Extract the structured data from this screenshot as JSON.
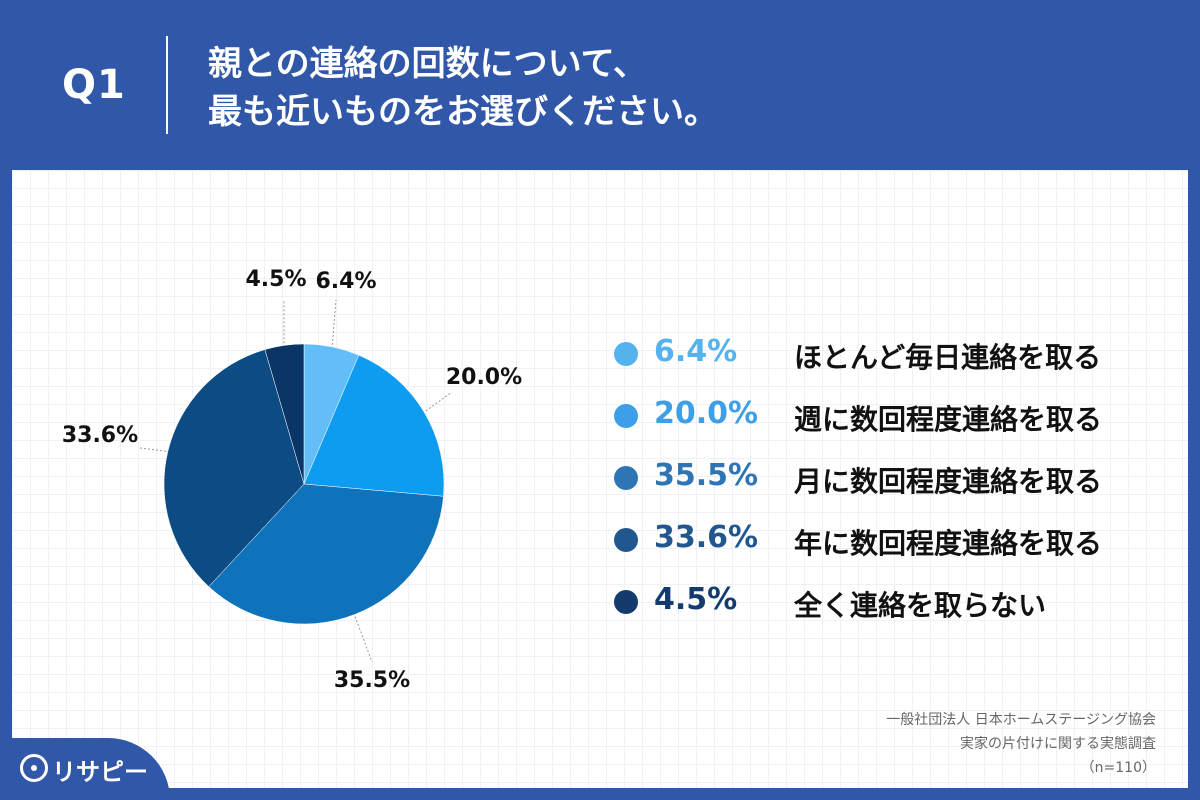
{
  "header": {
    "q_number": "Q1",
    "title_line1": "親との連絡の回数について、",
    "title_line2": "最も近いものをお選びください。"
  },
  "chart_data": {
    "type": "pie",
    "slices": [
      {
        "label": "ほとんど毎日連絡を取る",
        "value": 6.4,
        "value_text": "6.4%",
        "color": "#62bdf8"
      },
      {
        "label": "週に数回程度連絡を取る",
        "value": 20.0,
        "value_text": "20.0%",
        "color": "#0d9cf0"
      },
      {
        "label": "月に数回程度連絡を取る",
        "value": 35.5,
        "value_text": "35.5%",
        "color": "#0f73bb"
      },
      {
        "label": "年に数回程度連絡を取る",
        "value": 33.6,
        "value_text": "33.6%",
        "color": "#0d4b84"
      },
      {
        "label": "全く連絡を取らない",
        "value": 4.5,
        "value_text": "4.5%",
        "color": "#0b3566"
      }
    ],
    "legend_placement": "right",
    "start_angle": "top, clockwise"
  },
  "legend_colors": [
    "#54b3ef",
    "#3d9fe8",
    "#2e75b5",
    "#22568f",
    "#133b6e"
  ],
  "source": {
    "line1": "一般社団法人 日本ホームステージング協会",
    "line2": "実家の片付けに関する実態調査",
    "line3": "（n=110）"
  },
  "brand": {
    "name": "リサピー",
    "icon": "pin-icon"
  }
}
